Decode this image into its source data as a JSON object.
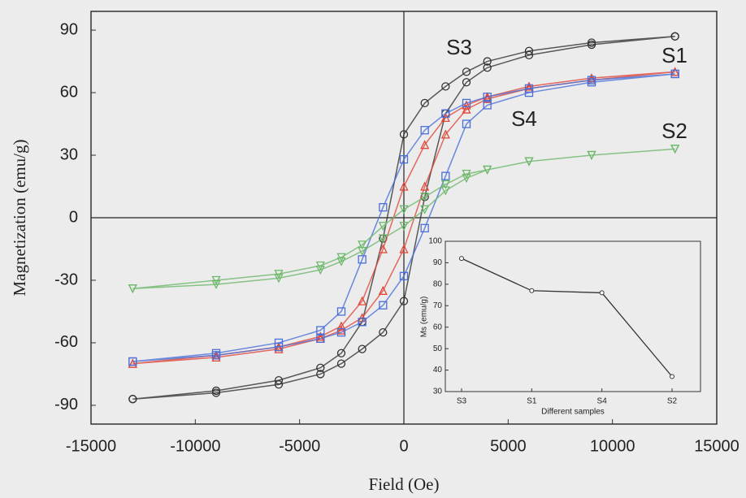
{
  "chart_data": [
    {
      "type": "scatter",
      "xlabel": "Field (Oe)",
      "ylabel": "Magnetization (emu/g)",
      "xlim": [
        -15000,
        15000
      ],
      "xticks": [
        -15000,
        -10000,
        -5000,
        0,
        5000,
        10000,
        15000
      ],
      "ylim": [
        -99,
        99
      ],
      "yticks": [
        -90,
        -60,
        -30,
        0,
        30,
        60,
        90
      ],
      "series": [
        {
          "name": "S3",
          "color": "#333333",
          "marker": "circle",
          "x": [
            -13000,
            -9000,
            -6000,
            -4000,
            -3000,
            -2000,
            -1000,
            0,
            1000,
            2000,
            3000,
            4000,
            6000,
            9000,
            13000,
            13000,
            9000,
            6000,
            4000,
            3000,
            2000,
            1000,
            0,
            -1000,
            -2000,
            -3000,
            -4000,
            -6000,
            -9000,
            -13000
          ],
          "values": [
            -87,
            -84,
            -80,
            -75,
            -70,
            -63,
            -55,
            -40,
            10,
            50,
            65,
            72,
            78,
            83,
            87,
            87,
            84,
            80,
            75,
            70,
            63,
            55,
            40,
            -10,
            -50,
            -65,
            -72,
            -78,
            -83,
            -87
          ]
        },
        {
          "name": "S1",
          "color": "#e0473a",
          "marker": "triangle-up",
          "x": [
            -13000,
            -9000,
            -6000,
            -4000,
            -3000,
            -2000,
            -1000,
            0,
            1000,
            2000,
            3000,
            4000,
            6000,
            9000,
            13000,
            13000,
            9000,
            6000,
            4000,
            3000,
            2000,
            1000,
            0,
            -1000,
            -2000,
            -3000,
            -4000,
            -6000,
            -9000,
            -13000
          ],
          "values": [
            -70,
            -67,
            -63,
            -58,
            -54,
            -48,
            -35,
            -15,
            15,
            40,
            52,
            57,
            62,
            66,
            70,
            70,
            67,
            63,
            58,
            54,
            48,
            35,
            15,
            -15,
            -40,
            -52,
            -57,
            -62,
            -66,
            -70
          ]
        },
        {
          "name": "S4",
          "color": "#4a6fd8",
          "marker": "square",
          "x": [
            -13000,
            -9000,
            -6000,
            -4000,
            -3000,
            -2000,
            -1000,
            0,
            1000,
            2000,
            3000,
            4000,
            6000,
            9000,
            13000,
            13000,
            9000,
            6000,
            4000,
            3000,
            2000,
            1000,
            0,
            -1000,
            -2000,
            -3000,
            -4000,
            -6000,
            -9000,
            -13000
          ],
          "values": [
            -69,
            -66,
            -62,
            -58,
            -55,
            -50,
            -42,
            -28,
            -5,
            20,
            45,
            54,
            60,
            65,
            69,
            69,
            66,
            62,
            58,
            55,
            50,
            42,
            28,
            5,
            -20,
            -45,
            -54,
            -60,
            -65,
            -69
          ]
        },
        {
          "name": "S2",
          "color": "#6db86b",
          "marker": "triangle-down",
          "x": [
            -13000,
            -9000,
            -6000,
            -4000,
            -3000,
            -2000,
            -1000,
            0,
            1000,
            2000,
            3000,
            4000,
            6000,
            9000,
            13000,
            13000,
            9000,
            6000,
            4000,
            3000,
            2000,
            1000,
            0,
            -1000,
            -2000,
            -3000,
            -4000,
            -6000,
            -9000,
            -13000
          ],
          "values": [
            -34,
            -32,
            -29,
            -25,
            -21,
            -16,
            -10,
            -4,
            4,
            13,
            19,
            23,
            27,
            30,
            33,
            33,
            30,
            27,
            23,
            21,
            16,
            10,
            4,
            -4,
            -13,
            -19,
            -23,
            -27,
            -30,
            -34
          ]
        }
      ]
    },
    {
      "type": "line",
      "xlabel": "Different samples",
      "ylabel": "Ms (emu/g)",
      "categories": [
        "S3",
        "S1",
        "S4",
        "S2"
      ],
      "values": [
        92,
        77,
        76,
        37
      ],
      "color": "#333333",
      "ylim": [
        30,
        100
      ],
      "yticks": [
        30,
        40,
        50,
        60,
        70,
        80,
        90,
        100
      ]
    }
  ]
}
